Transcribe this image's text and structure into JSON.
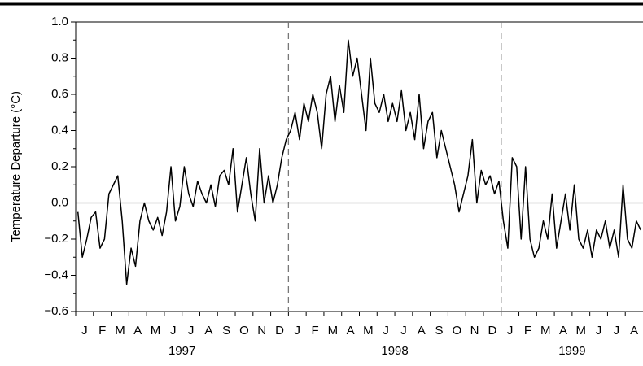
{
  "chart_data": {
    "type": "line",
    "y_label": "Temperature Departure (°C)",
    "categories": [
      null,
      null,
      "J",
      null,
      null,
      null,
      "F",
      null,
      null,
      null,
      "M",
      null,
      null,
      null,
      "A",
      null,
      null,
      null,
      "M",
      null,
      null,
      null,
      "J",
      null,
      null,
      null,
      "J",
      null,
      null,
      null,
      "A",
      null,
      null,
      null,
      "S",
      null,
      null,
      null,
      "O",
      null,
      null,
      null,
      "N",
      null,
      null,
      null,
      "D",
      null,
      null,
      null,
      "J",
      null,
      null,
      null,
      "F",
      null,
      null,
      null,
      "M",
      null,
      null,
      null,
      "A",
      null,
      null,
      null,
      "M",
      null,
      null,
      null,
      "J",
      null,
      null,
      null,
      "J",
      null,
      null,
      null,
      "A",
      null,
      null,
      null,
      "S",
      null,
      null,
      null,
      "O",
      null,
      null,
      null,
      "N",
      null,
      null,
      null,
      "D",
      null,
      null,
      null,
      "J",
      null,
      null,
      null,
      "F",
      null,
      null,
      null,
      "M",
      null,
      null,
      null,
      "A",
      null,
      null,
      null,
      "M",
      null,
      null,
      null,
      "J",
      null,
      null,
      null,
      "J",
      null,
      null,
      null,
      "A",
      null
    ],
    "years": [
      "1997",
      "1998",
      "1999"
    ],
    "series": [
      {
        "color": "#000000",
        "values": [
          -0.05,
          -0.3,
          -0.2,
          -0.08,
          -0.05,
          -0.25,
          -0.2,
          0.05,
          0.1,
          0.15,
          -0.1,
          -0.45,
          -0.25,
          -0.35,
          -0.1,
          0.0,
          -0.1,
          -0.15,
          -0.08,
          -0.18,
          -0.05,
          0.2,
          -0.1,
          -0.02,
          0.2,
          0.05,
          -0.02,
          0.12,
          0.05,
          0.0,
          0.1,
          -0.02,
          0.15,
          0.18,
          0.1,
          0.3,
          -0.05,
          0.1,
          0.25,
          0.05,
          -0.1,
          0.3,
          0.0,
          0.15,
          0.0,
          0.1,
          0.25,
          0.35,
          0.4,
          0.5,
          0.35,
          0.55,
          0.45,
          0.6,
          0.5,
          0.3,
          0.6,
          0.7,
          0.45,
          0.65,
          0.5,
          0.9,
          0.7,
          0.8,
          0.6,
          0.4,
          0.8,
          0.55,
          0.5,
          0.6,
          0.45,
          0.55,
          0.45,
          0.62,
          0.4,
          0.5,
          0.35,
          0.6,
          0.3,
          0.45,
          0.5,
          0.25,
          0.4,
          0.3,
          0.2,
          0.1,
          -0.05,
          0.05,
          0.15,
          0.35,
          0.0,
          0.18,
          0.1,
          0.15,
          0.05,
          0.12,
          -0.1,
          -0.25,
          0.25,
          0.2,
          -0.2,
          0.2,
          -0.2,
          -0.3,
          -0.25,
          -0.1,
          -0.2,
          0.05,
          -0.25,
          -0.1,
          0.05,
          -0.15,
          0.1,
          -0.2,
          -0.25,
          -0.15,
          -0.3,
          -0.15,
          -0.2,
          -0.1,
          -0.25,
          -0.15,
          -0.3,
          0.1,
          -0.2,
          -0.25,
          -0.1,
          -0.15
        ]
      }
    ],
    "ylim": [
      -0.6,
      1.0
    ],
    "yticks": [
      {
        "value": -0.6,
        "label": "−0.6"
      },
      {
        "value": -0.4,
        "label": "−0.4"
      },
      {
        "value": -0.2,
        "label": "−0.2"
      },
      {
        "value": 0,
        "label": "0.0"
      },
      {
        "value": 0.2,
        "label": "0.2"
      },
      {
        "value": 0.4,
        "label": "0.4"
      },
      {
        "value": 0.6,
        "label": "0.6"
      },
      {
        "value": 0.8,
        "label": "0.8"
      },
      {
        "value": 1.0,
        "label": "1.0"
      }
    ],
    "zero_line": true
  }
}
